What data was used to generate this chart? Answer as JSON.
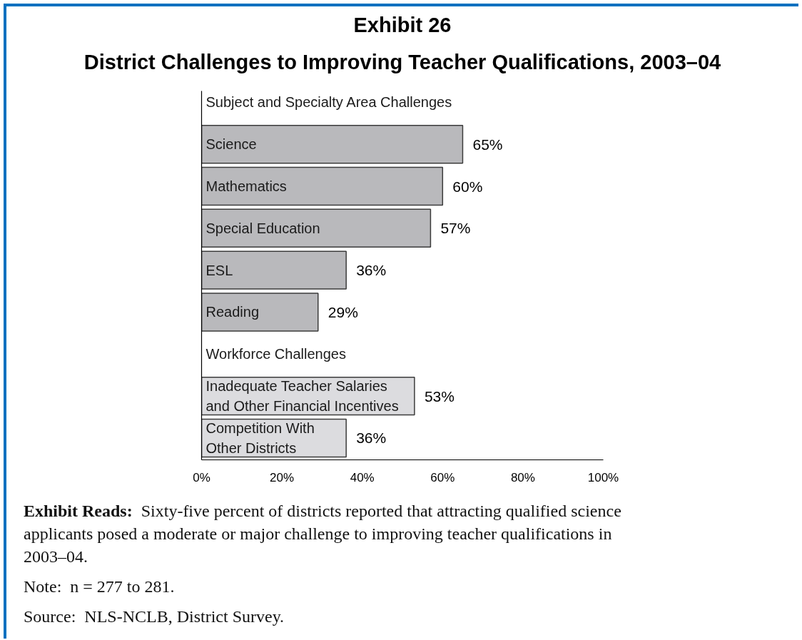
{
  "chart_data": {
    "type": "bar",
    "orientation": "horizontal",
    "title": "Exhibit 26",
    "subtitle": "District Challenges to Improving Teacher Qualifications, 2003–04",
    "categories": [
      "Subject and Specialty Area Challenges",
      "Science",
      "Mathematics",
      "Special Education",
      "ESL",
      "Reading",
      "Workforce Challenges",
      "Inadequate Teacher Salaries\nand Other Financial Incentives",
      "Competition With\nOther Districts"
    ],
    "values": [
      null,
      65,
      60,
      57,
      36,
      29,
      null,
      53,
      36
    ],
    "colors": [
      null,
      "#b9b9bc",
      "#b9b9bc",
      "#b9b9bc",
      "#b9b9bc",
      "#b9b9bc",
      null,
      "#dcdcdf",
      "#dcdcdf"
    ],
    "value_labels": [
      null,
      "65%",
      "60%",
      "57%",
      "36%",
      "29%",
      null,
      "53%",
      "36%"
    ],
    "xlim": [
      0,
      100
    ],
    "xticks": [
      {
        "value": 0,
        "label": "0%"
      },
      {
        "value": 20,
        "label": "20%"
      },
      {
        "value": 40,
        "label": "40%"
      },
      {
        "value": 60,
        "label": "60%"
      },
      {
        "value": 80,
        "label": "80%"
      },
      {
        "value": 100,
        "label": "100%"
      }
    ],
    "annotations": [
      "Exhibit Reads:  Sixty-five percent of districts reported that attracting qualified science applicants posed a moderate or major challenge to improving teacher qualifications in 2003–04.",
      "Note:  n = 277 to 281.",
      "Source:  NLS-NCLB, District Survey."
    ]
  }
}
